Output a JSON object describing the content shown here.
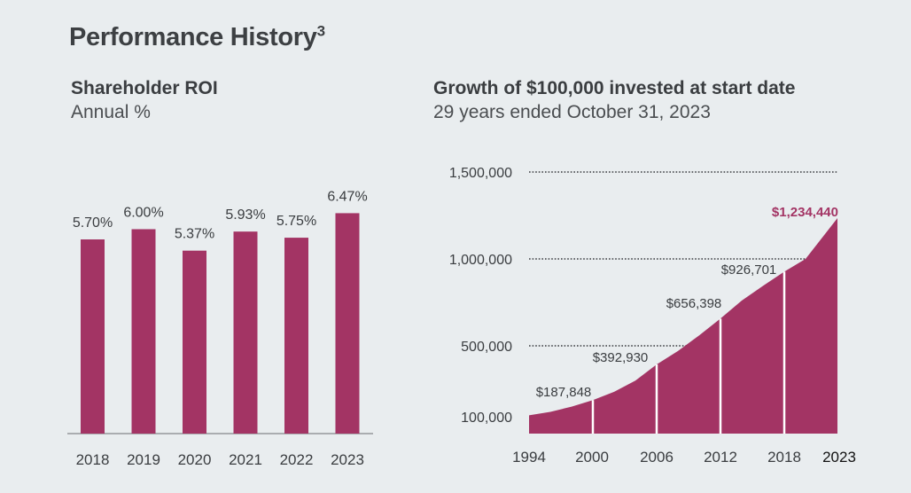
{
  "page": {
    "title": "Performance History",
    "title_sup": "3"
  },
  "colors": {
    "accent": "#a33464",
    "background": "#e9edef",
    "text": "#3a3d40",
    "white_lines": "#ffffff"
  },
  "chart_data": [
    {
      "type": "bar",
      "title": "Shareholder ROI",
      "subtitle": "Annual %",
      "categories": [
        "2018",
        "2019",
        "2020",
        "2021",
        "2022",
        "2023"
      ],
      "values": [
        5.7,
        6.0,
        5.37,
        5.93,
        5.75,
        6.47
      ],
      "labels": [
        "5.70%",
        "6.00%",
        "5.37%",
        "5.93%",
        "5.75%",
        "6.47%"
      ],
      "ylim": [
        0,
        7.3
      ],
      "grid": false
    },
    {
      "type": "area",
      "title": "Growth of $100,000 invested at start date",
      "subtitle": "29 years ended October 31, 2023",
      "x": [
        1994,
        1996,
        1998,
        2000,
        2002,
        2004,
        2006,
        2008,
        2010,
        2012,
        2014,
        2016,
        2018,
        2020,
        2023
      ],
      "values": [
        100000,
        120000,
        150000,
        187848,
        235000,
        300000,
        392930,
        470000,
        560000,
        656398,
        760000,
        845000,
        926701,
        1000000,
        1234440
      ],
      "ylim": [
        0,
        1500000
      ],
      "yticks": [
        100000,
        500000,
        1000000,
        1500000
      ],
      "ytick_labels": [
        "100,000",
        "500,000",
        "1,000,000",
        "1,500,000"
      ],
      "xticks": [
        1994,
        2000,
        2006,
        2012,
        2018,
        2023
      ],
      "xtick_labels": [
        "1994",
        "2000",
        "2006",
        "2012",
        "2018",
        "2023"
      ],
      "markers": [
        {
          "year": 2000,
          "value": 187848,
          "label": "$187,848"
        },
        {
          "year": 2006,
          "value": 392930,
          "label": "$392,930"
        },
        {
          "year": 2012,
          "value": 656398,
          "label": "$656,398"
        },
        {
          "year": 2018,
          "value": 926701,
          "label": "$926,701"
        }
      ],
      "end_label": "$1,234,440"
    }
  ]
}
